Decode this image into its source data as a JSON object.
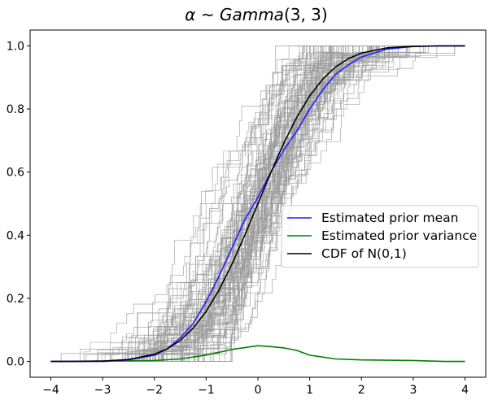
{
  "chart_data": {
    "type": "line",
    "title": {
      "alpha": "α",
      "sim": " ~ ",
      "dist": "Gamma",
      "params": "(3, 3)"
    },
    "xlabel": "",
    "ylabel": "",
    "xlim": [
      -4.4,
      4.4
    ],
    "ylim": [
      -0.05,
      1.05
    ],
    "xticks": [
      -4,
      -3,
      -2,
      -1,
      0,
      1,
      2,
      3,
      4
    ],
    "xtick_labels": [
      "−4",
      "−3",
      "−2",
      "−1",
      "0",
      "1",
      "2",
      "3",
      "4"
    ],
    "yticks": [
      0.0,
      0.2,
      0.4,
      0.6,
      0.8,
      1.0
    ],
    "ytick_labels": [
      "0.0",
      "0.2",
      "0.4",
      "0.6",
      "0.8",
      "1.0"
    ],
    "grid": false,
    "legend_position": "center-right",
    "background_curves": {
      "count": 100,
      "color": "#9a9a9a",
      "x_range": [
        -4,
        4
      ],
      "description": "sampled empirical step CDFs"
    },
    "series": [
      {
        "name": "Estimated prior mean",
        "color": "#1f1fff",
        "x": [
          -4.0,
          -3.0,
          -2.5,
          -2.0,
          -1.75,
          -1.5,
          -1.25,
          -1.0,
          -0.75,
          -0.5,
          -0.25,
          0.0,
          0.25,
          0.5,
          0.75,
          1.0,
          1.25,
          1.5,
          1.75,
          2.0,
          2.5,
          3.0,
          3.5,
          3.6,
          4.0
        ],
        "y": [
          0.0,
          0.0,
          0.005,
          0.02,
          0.04,
          0.075,
          0.12,
          0.19,
          0.27,
          0.36,
          0.45,
          0.52,
          0.6,
          0.67,
          0.73,
          0.8,
          0.86,
          0.91,
          0.94,
          0.965,
          0.99,
          0.998,
          1.0,
          1.0,
          1.0
        ]
      },
      {
        "name": "Estimated prior variance",
        "color": "#008000",
        "x": [
          -4.0,
          -2.0,
          -1.5,
          -1.0,
          -0.5,
          0.0,
          0.25,
          0.5,
          0.75,
          1.0,
          1.5,
          2.0,
          3.0,
          3.6,
          4.0
        ],
        "y": [
          0.0,
          0.003,
          0.008,
          0.02,
          0.038,
          0.05,
          0.047,
          0.043,
          0.035,
          0.02,
          0.008,
          0.005,
          0.003,
          0.0,
          0.0
        ]
      },
      {
        "name": "CDF of N(0,1)",
        "color": "#000000",
        "x": [
          -4.0,
          -3.5,
          -3.0,
          -2.5,
          -2.0,
          -1.75,
          -1.5,
          -1.25,
          -1.0,
          -0.75,
          -0.5,
          -0.25,
          0.0,
          0.25,
          0.5,
          0.75,
          1.0,
          1.25,
          1.5,
          1.75,
          2.0,
          2.5,
          3.0,
          3.5,
          4.0
        ],
        "y": [
          3e-05,
          0.0002,
          0.0013,
          0.0062,
          0.0228,
          0.0401,
          0.0668,
          0.1056,
          0.1587,
          0.2266,
          0.3085,
          0.4013,
          0.5,
          0.5987,
          0.6915,
          0.7734,
          0.8413,
          0.8944,
          0.9332,
          0.9599,
          0.9772,
          0.9938,
          0.9987,
          0.9998,
          1.0
        ]
      }
    ]
  }
}
